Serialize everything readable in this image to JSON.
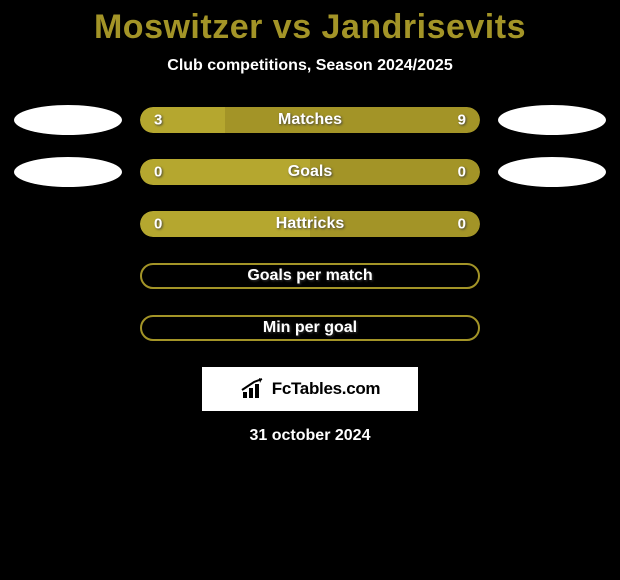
{
  "title": "Moswitzer vs Jandrisevits",
  "subtitle": "Club competitions, Season 2024/2025",
  "colors": {
    "accent": "#a39427",
    "accent_light": "#b5a72f",
    "background": "#000000",
    "text": "#ffffff",
    "oval": "#ffffff"
  },
  "rows": [
    {
      "label": "Matches",
      "left": "3",
      "right": "9",
      "left_pct": 25,
      "has_ovals": true
    },
    {
      "label": "Goals",
      "left": "0",
      "right": "0",
      "left_pct": 50,
      "has_ovals": true
    },
    {
      "label": "Hattricks",
      "left": "0",
      "right": "0",
      "left_pct": 50,
      "has_ovals": false
    }
  ],
  "hollow_rows": [
    {
      "label": "Goals per match"
    },
    {
      "label": "Min per goal"
    }
  ],
  "logo": {
    "text": "FcTables.com"
  },
  "date": "31 october 2024"
}
